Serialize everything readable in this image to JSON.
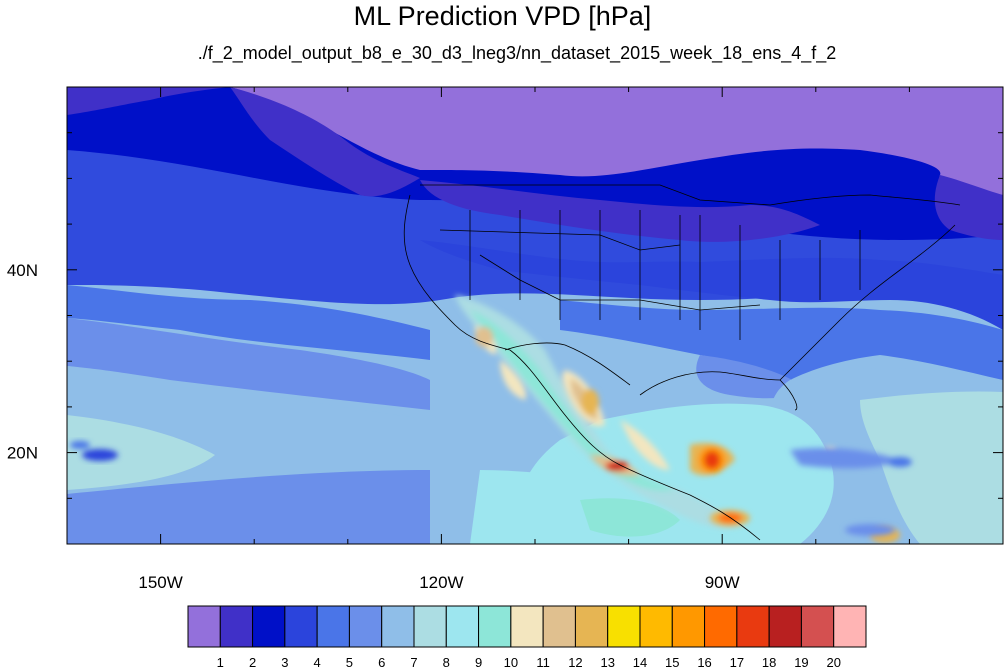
{
  "title": "ML Prediction VPD [hPa]",
  "subtitle": "./f_2_model_output_b8_e_30_d3_lneg3/nn_dataset_2015_week_18_ens_4_f_2",
  "axes": {
    "x_ticks": [
      {
        "label": "150W",
        "value": -150
      },
      {
        "label": "120W",
        "value": -120
      },
      {
        "label": "90W",
        "value": -90
      }
    ],
    "y_ticks": [
      {
        "label": "40N",
        "value": 40
      },
      {
        "label": "20N",
        "value": 20
      }
    ],
    "lon_range": [
      -160,
      -60
    ],
    "lat_range": [
      10,
      60
    ]
  },
  "colorbar": {
    "labels": [
      "1",
      "2",
      "3",
      "4",
      "5",
      "6",
      "7",
      "8",
      "9",
      "10",
      "11",
      "12",
      "13",
      "14",
      "15",
      "16",
      "17",
      "18",
      "19",
      "20"
    ],
    "colors": [
      "#9370DB",
      "#4030C8",
      "#0010C8",
      "#2B44DC",
      "#4A75E8",
      "#6B8FEA",
      "#8FBEE8",
      "#ACDDE3",
      "#9DE6EF",
      "#8DE6D8",
      "#F3E6BF",
      "#E0C08F",
      "#E6B553",
      "#F8E000",
      "#FFBA00",
      "#FF9800",
      "#FF6A00",
      "#E93A10",
      "#B82020",
      "#D45050",
      "#FFB4B4"
    ]
  },
  "colors": {
    "ocean_deep_purple": "#9370DB",
    "land_lines": "#000000"
  }
}
